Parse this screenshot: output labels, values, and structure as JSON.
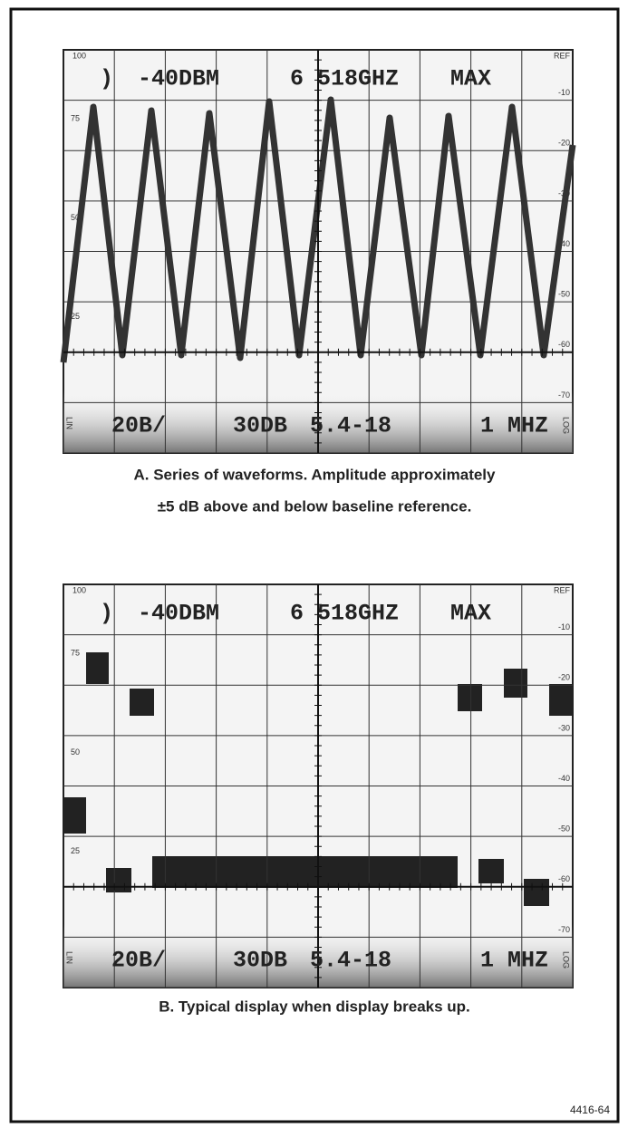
{
  "panels": [
    {
      "screen": {
        "top_left": "100",
        "top_right": "REF",
        "cursor": ")",
        "ref_level": "-40DBM",
        "frequency": "6 518GHZ",
        "mode": "MAX",
        "left_scale": [
          "75",
          "50",
          "25"
        ],
        "right_scale": [
          "-10",
          "-20",
          "-30",
          "-40",
          "-50",
          "-60",
          "-70"
        ],
        "lin": "LIN",
        "vert_div": "20B/",
        "scale_db": "30DB",
        "band": "5.4-18",
        "resolution": "1 MHZ",
        "log": "LOG"
      },
      "caption": [
        "A. Series of waveforms. Amplitude approximately",
        "±5 dB above and below baseline reference."
      ]
    },
    {
      "screen": {
        "top_left": "100",
        "top_right": "REF",
        "cursor": ")",
        "ref_level": "-40DBM",
        "frequency": "6 518GHZ",
        "mode": "MAX",
        "left_scale": [
          "75",
          "50",
          "25"
        ],
        "right_scale": [
          "-10",
          "-20",
          "-30",
          "-40",
          "-50",
          "-60",
          "-70"
        ],
        "lin": "LIN",
        "vert_div": "20B/",
        "scale_db": "30DB",
        "band": "5.4-18",
        "resolution": "1 MHZ",
        "log": "LOG"
      },
      "caption": [
        "B. Typical display when display breaks up."
      ]
    }
  ],
  "footer": "4416-64"
}
